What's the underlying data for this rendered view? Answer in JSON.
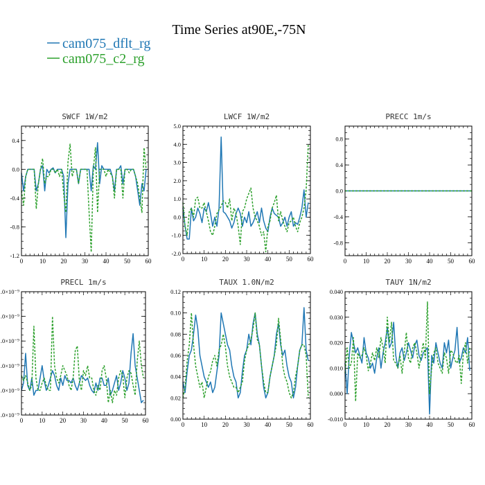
{
  "figure": {
    "title": "Time Series at90E,-75N",
    "legend": [
      {
        "name": "cam075_dflt_rg",
        "color": "#1f77b4"
      },
      {
        "name": "cam075_c2_rg",
        "color": "#2ca02c"
      }
    ]
  },
  "chart_data": [
    {
      "type": "line",
      "title": "SWCF   1W/m2",
      "xlim": [
        0,
        60
      ],
      "ylim": [
        -1.2,
        0.6
      ],
      "xticks": [
        0,
        10,
        20,
        30,
        40,
        50,
        60
      ],
      "yticks": [
        -1.2,
        -0.8,
        -0.4,
        0.0,
        0.4
      ],
      "yticklabels": [
        "-1.2",
        "-0.8",
        "-0.4",
        "0.0",
        "0.4"
      ],
      "grid": false,
      "series": [
        {
          "name": "cam075_dflt_rg",
          "color": "#1f77b4",
          "dash": "",
          "values": [
            -0.05,
            -0.3,
            -0.1,
            0.0,
            0.0,
            0.0,
            0.0,
            -0.3,
            -0.2,
            0.0,
            0.05,
            -0.3,
            0.0,
            -0.05,
            0.0,
            0.02,
            -0.05,
            0.0,
            0.0,
            0.0,
            -0.1,
            -0.95,
            -0.2,
            0.0,
            0.0,
            0.0,
            0.0,
            -0.2,
            0.0,
            0.0,
            0.0,
            0.0,
            0.0,
            -0.3,
            0.05,
            0.0,
            0.37,
            -0.2,
            0.05,
            0.0,
            0.0,
            0.0,
            0.0,
            -0.1,
            -0.3,
            0.0,
            0.0,
            0.05,
            -0.2,
            0.0,
            0.0,
            0.0,
            0.0,
            0.0,
            -0.1,
            -0.3,
            -0.5,
            -0.2,
            -0.3,
            0.0
          ]
        },
        {
          "name": "cam075_c2_rg",
          "color": "#2ca02c",
          "dash": "3,2",
          "values": [
            -0.3,
            -0.5,
            -0.1,
            0.0,
            0.0,
            0.0,
            0.0,
            -0.55,
            -0.2,
            0.0,
            0.15,
            -0.2,
            -0.1,
            -0.1,
            0.0,
            0.0,
            -0.05,
            0.0,
            -0.1,
            0.0,
            -0.35,
            -0.6,
            0.1,
            0.35,
            -0.1,
            0.0,
            0.0,
            -0.2,
            0.0,
            0.0,
            0.0,
            0.0,
            -0.6,
            -1.15,
            0.0,
            0.3,
            -0.6,
            0.0,
            0.0,
            0.0,
            -0.1,
            0.0,
            -0.05,
            -0.1,
            -0.4,
            0.0,
            0.0,
            0.0,
            -0.4,
            0.0,
            0.0,
            -0.05,
            0.0,
            0.0,
            -0.1,
            -0.2,
            -0.4,
            -0.6,
            0.3,
            0.0
          ]
        }
      ]
    },
    {
      "type": "line",
      "title": "LWCF   1W/m2",
      "xlim": [
        0,
        60
      ],
      "ylim": [
        -2.0,
        5.0
      ],
      "xticks": [
        0,
        10,
        20,
        30,
        40,
        50,
        60
      ],
      "yticks": [
        -2.0,
        -1.0,
        0.0,
        1.0,
        2.0,
        3.0,
        4.0,
        5.0
      ],
      "yticklabels": [
        "-2.0",
        "-1.0",
        "0.0",
        "1.0",
        "2.0",
        "3.0",
        "4.0",
        "5.0"
      ],
      "grid": false,
      "series": [
        {
          "name": "cam075_dflt_rg",
          "color": "#1f77b4",
          "dash": "",
          "values": [
            0.5,
            -0.5,
            -1.2,
            -1.2,
            0.5,
            -0.2,
            0.0,
            0.5,
            0.2,
            -0.3,
            0.5,
            0.3,
            0.8,
            0.2,
            -0.5,
            0.0,
            -0.5,
            0.5,
            4.4,
            0.3,
            0.2,
            0.0,
            -0.2,
            -0.6,
            -0.3,
            0.2,
            0.5,
            0.2,
            -0.5,
            0.0,
            -0.3,
            0.3,
            -0.5,
            -0.3,
            0.0,
            0.3,
            -0.3,
            0.5,
            -0.2,
            -0.6,
            -0.8,
            0.0,
            0.5,
            0.2,
            0.1,
            0.0,
            -0.5,
            -0.3,
            0.0,
            -0.5,
            0.0,
            0.3,
            -0.5,
            -0.3,
            -0.4,
            0.0,
            0.5,
            1.5,
            0.0,
            0.8
          ]
        },
        {
          "name": "cam075_c2_rg",
          "color": "#2ca02c",
          "dash": "3,2",
          "values": [
            0.8,
            -0.5,
            -1.0,
            0.3,
            0.5,
            0.0,
            1.0,
            1.1,
            0.5,
            0.5,
            0.8,
            0.3,
            -0.2,
            -0.8,
            -1.0,
            -0.5,
            0.2,
            0.4,
            0.6,
            0.9,
            0.8,
            0.5,
            1.0,
            -0.2,
            0.5,
            0.2,
            -0.5,
            -1.5,
            0.3,
            0.5,
            1.0,
            1.3,
            1.6,
            0.5,
            0.0,
            -0.2,
            -0.5,
            -1.0,
            -0.8,
            -1.9,
            -0.5,
            -0.2,
            0.5,
            0.8,
            1.2,
            -0.2,
            0.3,
            -0.2,
            -0.5,
            -0.8,
            -0.3,
            -0.2,
            0.0,
            -0.5,
            -0.8,
            -0.3,
            0.0,
            0.5,
            1.5,
            4.0
          ]
        }
      ]
    },
    {
      "type": "line",
      "title": "PRECC   1m/s",
      "xlim": [
        0,
        60
      ],
      "ylim": [
        -1.0,
        1.0
      ],
      "xticks": [
        0,
        10,
        20,
        30,
        40,
        50,
        60
      ],
      "yticks": [
        -0.8,
        -0.4,
        0.0,
        0.4,
        0.8
      ],
      "yticklabels": [
        "-0.8",
        "-0.4",
        "0.0",
        "0.4",
        "0.8"
      ],
      "grid": false,
      "series": [
        {
          "name": "cam075_dflt_rg",
          "color": "#1f77b4",
          "dash": "",
          "values": [
            0,
            0,
            0,
            0,
            0,
            0,
            0,
            0,
            0,
            0,
            0,
            0,
            0,
            0,
            0,
            0,
            0,
            0,
            0,
            0,
            0,
            0,
            0,
            0,
            0,
            0,
            0,
            0,
            0,
            0,
            0,
            0,
            0,
            0,
            0,
            0,
            0,
            0,
            0,
            0,
            0,
            0,
            0,
            0,
            0,
            0,
            0,
            0,
            0,
            0,
            0,
            0,
            0,
            0,
            0,
            0,
            0,
            0,
            0,
            0,
            0
          ]
        },
        {
          "name": "cam075_c2_rg",
          "color": "#2ca02c",
          "dash": "3,2",
          "values": [
            0,
            0,
            0,
            0,
            0,
            0,
            0,
            0,
            0,
            0,
            0,
            0,
            0,
            0,
            0,
            0,
            0,
            0,
            0,
            0,
            0,
            0,
            0,
            0,
            0,
            0,
            0,
            0,
            0,
            0,
            0,
            0,
            0,
            0,
            0,
            0,
            0,
            0,
            0,
            0,
            0,
            0,
            0,
            0,
            0,
            0,
            0,
            0,
            0,
            0,
            0,
            0,
            0,
            0,
            0,
            0,
            0,
            0,
            0,
            0,
            0
          ]
        }
      ]
    },
    {
      "type": "line",
      "title": "PRECL   1m/s",
      "xlim": [
        0,
        60
      ],
      "ylim": [
        0,
        5
      ],
      "xticks": [
        0,
        10,
        20,
        30,
        40,
        50,
        60
      ],
      "yticks": [
        0,
        1,
        2,
        3,
        4,
        5
      ],
      "yticklabels": [
        ".0×10⁻⁹",
        ".0×10⁻⁹",
        ".0×10⁻⁹",
        ".0×10⁻⁹",
        ".0×10⁻⁹",
        ".0×10⁻⁹"
      ],
      "grid": false,
      "series": [
        {
          "name": "cam075_dflt_rg",
          "color": "#1f77b4",
          "dash": "",
          "values": [
            1.0,
            1.3,
            2.5,
            1.2,
            1.0,
            1.5,
            0.8,
            1.0,
            1.0,
            1.5,
            2.0,
            1.4,
            1.0,
            1.2,
            1.5,
            1.8,
            1.6,
            1.2,
            1.0,
            1.5,
            1.2,
            1.6,
            1.4,
            1.4,
            1.3,
            1.5,
            1.2,
            1.0,
            1.3,
            1.6,
            1.5,
            1.4,
            1.5,
            1.2,
            1.0,
            0.9,
            1.3,
            1.0,
            1.5,
            1.5,
            1.2,
            1.2,
            1.5,
            0.8,
            1.0,
            1.3,
            1.6,
            1.0,
            1.3,
            1.8,
            1.5,
            1.0,
            1.3,
            2.5,
            3.3,
            2.0,
            1.5,
            1.0,
            0.5,
            0.6
          ]
        },
        {
          "name": "cam075_c2_rg",
          "color": "#2ca02c",
          "dash": "3,2",
          "values": [
            1.6,
            1.4,
            1.6,
            1.3,
            1.0,
            1.2,
            3.6,
            1.5,
            1.0,
            1.0,
            1.3,
            1.5,
            1.2,
            1.0,
            1.0,
            4.0,
            2.0,
            1.5,
            1.3,
            1.6,
            2.0,
            1.8,
            1.6,
            1.2,
            1.0,
            1.5,
            2.6,
            2.8,
            1.4,
            1.0,
            1.8,
            1.6,
            2.0,
            1.5,
            1.5,
            1.0,
            0.8,
            1.2,
            1.0,
            1.8,
            2.0,
            1.5,
            0.5,
            1.0,
            0.5,
            1.0,
            0.8,
            1.5,
            1.8,
            1.6,
            0.7,
            1.5,
            1.8,
            1.7,
            1.2,
            0.8,
            2.2,
            3.0,
            2.0,
            1.5
          ]
        }
      ]
    },
    {
      "type": "line",
      "title": "TAUX   1.0N/m2",
      "xlim": [
        0,
        60
      ],
      "ylim": [
        0.0,
        0.12
      ],
      "xticks": [
        0,
        10,
        20,
        30,
        40,
        50,
        60
      ],
      "yticks": [
        0.0,
        0.02,
        0.04,
        0.06,
        0.08,
        0.1,
        0.12
      ],
      "yticklabels": [
        "0.00",
        "0.02",
        "0.04",
        "0.06",
        "0.08",
        "0.10",
        "0.12"
      ],
      "grid": false,
      "series": [
        {
          "name": "cam075_dflt_rg",
          "color": "#1f77b4",
          "dash": "",
          "values": [
            0.035,
            0.025,
            0.045,
            0.06,
            0.065,
            0.08,
            0.098,
            0.085,
            0.06,
            0.05,
            0.04,
            0.035,
            0.03,
            0.035,
            0.025,
            0.03,
            0.045,
            0.06,
            0.1,
            0.09,
            0.08,
            0.07,
            0.065,
            0.05,
            0.04,
            0.035,
            0.02,
            0.025,
            0.045,
            0.06,
            0.065,
            0.08,
            0.07,
            0.09,
            0.1,
            0.08,
            0.07,
            0.05,
            0.03,
            0.02,
            0.025,
            0.04,
            0.05,
            0.06,
            0.08,
            0.09,
            0.07,
            0.06,
            0.065,
            0.05,
            0.04,
            0.035,
            0.02,
            0.03,
            0.05,
            0.065,
            0.07,
            0.105,
            0.065,
            0.055
          ]
        },
        {
          "name": "cam075_c2_rg",
          "color": "#2ca02c",
          "dash": "3,2",
          "values": [
            0.02,
            0.03,
            0.055,
            0.07,
            0.1,
            0.07,
            0.05,
            0.04,
            0.03,
            0.035,
            0.02,
            0.03,
            0.04,
            0.045,
            0.055,
            0.06,
            0.05,
            0.065,
            0.07,
            0.08,
            0.068,
            0.05,
            0.04,
            0.035,
            0.03,
            0.03,
            0.025,
            0.03,
            0.035,
            0.055,
            0.065,
            0.07,
            0.075,
            0.085,
            0.1,
            0.075,
            0.07,
            0.05,
            0.035,
            0.025,
            0.025,
            0.04,
            0.05,
            0.06,
            0.07,
            0.095,
            0.075,
            0.05,
            0.04,
            0.035,
            0.025,
            0.02,
            0.025,
            0.04,
            0.05,
            0.065,
            0.07,
            0.07,
            0.06,
            0.02
          ]
        }
      ]
    },
    {
      "type": "line",
      "title": "TAUY   1N/m2",
      "xlim": [
        0,
        60
      ],
      "ylim": [
        -0.01,
        0.04
      ],
      "xticks": [
        0,
        10,
        20,
        30,
        40,
        50,
        60
      ],
      "yticks": [
        -0.01,
        0.0,
        0.01,
        0.02,
        0.03,
        0.04
      ],
      "yticklabels": [
        "-0.010",
        "0.000",
        "0.010",
        "0.020",
        "0.030",
        "0.040"
      ],
      "grid": false,
      "series": [
        {
          "name": "cam075_dflt_rg",
          "color": "#1f77b4",
          "dash": "",
          "values": [
            0.012,
            0.0,
            0.015,
            0.024,
            0.02,
            0.016,
            0.018,
            0.015,
            0.012,
            0.022,
            0.016,
            0.014,
            0.01,
            0.012,
            0.008,
            0.014,
            0.018,
            0.01,
            0.016,
            0.02,
            0.026,
            0.018,
            0.02,
            0.028,
            0.015,
            0.01,
            0.016,
            0.018,
            0.013,
            0.016,
            0.02,
            0.017,
            0.014,
            0.019,
            0.021,
            0.015,
            0.013,
            0.016,
            0.017,
            0.018,
            -0.008,
            0.015,
            0.012,
            0.02,
            0.016,
            0.012,
            0.01,
            0.02,
            0.016,
            0.021,
            0.01,
            0.014,
            0.017,
            0.026,
            0.012,
            0.014,
            0.018,
            0.016,
            0.022,
            0.009
          ]
        },
        {
          "name": "cam075_c2_rg",
          "color": "#2ca02c",
          "dash": "3,2",
          "values": [
            0.008,
            0.018,
            0.01,
            0.012,
            0.022,
            -0.003,
            0.016,
            0.014,
            0.015,
            0.018,
            0.015,
            0.009,
            0.012,
            0.016,
            0.013,
            0.018,
            0.014,
            0.022,
            0.018,
            0.012,
            0.03,
            0.02,
            0.028,
            0.013,
            0.012,
            0.01,
            0.015,
            0.008,
            0.016,
            0.024,
            0.014,
            0.012,
            0.018,
            0.02,
            0.016,
            0.01,
            0.015,
            0.02,
            0.014,
            0.036,
            0.0,
            0.01,
            0.016,
            0.018,
            0.012,
            0.01,
            0.008,
            0.016,
            0.014,
            0.008,
            0.017,
            0.016,
            0.013,
            0.012,
            0.015,
            0.004,
            0.016,
            0.02,
            0.012,
            0.018
          ]
        }
      ]
    }
  ]
}
